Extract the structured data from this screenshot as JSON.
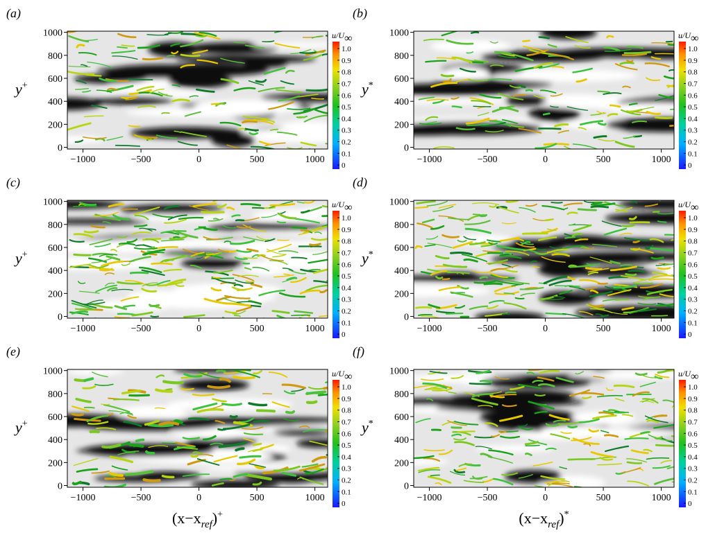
{
  "chart_data": [
    {
      "type": "field",
      "label": "(a)",
      "ylabel": {
        "main": "y",
        "sup": "+"
      },
      "xlim": [
        -1135,
        1110
      ],
      "ylim": [
        -15,
        1010
      ],
      "xticks": [
        {
          "value": -1000,
          "label": "−1000"
        },
        {
          "value": -500,
          "label": "−500"
        },
        0,
        500,
        1000
      ],
      "yticks": [
        0,
        200,
        400,
        600,
        800,
        1000
      ],
      "colorbar": {
        "title": {
          "main": "u/U",
          "sub": "∞"
        },
        "lim": [
          -0.035,
          1.06
        ],
        "ticks": [
          0,
          0.1,
          0.2,
          0.3,
          0.4,
          0.5,
          0.6,
          0.7,
          0.8,
          0.9,
          {
            "value": 1,
            "label": "1.0"
          }
        ]
      }
    },
    {
      "type": "field",
      "label": "(b)",
      "ylabel": {
        "main": "y",
        "sup": "*"
      },
      "xlim": [
        -1135,
        1110
      ],
      "ylim": [
        -15,
        1010
      ],
      "xticks": [
        {
          "value": -1000,
          "label": "−1000"
        },
        {
          "value": -500,
          "label": "−500"
        },
        0,
        500,
        1000
      ],
      "yticks": [
        0,
        200,
        400,
        600,
        800,
        1000
      ],
      "colorbar": {
        "title": {
          "main": "u/U",
          "sub": "∞"
        },
        "lim": [
          -0.035,
          1.06
        ],
        "ticks": [
          0,
          0.1,
          0.2,
          0.3,
          0.4,
          0.5,
          0.6,
          0.7,
          0.8,
          0.9,
          {
            "value": 1,
            "label": "1.0"
          }
        ]
      }
    },
    {
      "type": "field",
      "label": "(c)",
      "ylabel": {
        "main": "y",
        "sup": "+"
      },
      "xlim": [
        -1135,
        1110
      ],
      "ylim": [
        -15,
        1010
      ],
      "xticks": [
        {
          "value": -1000,
          "label": "−1000"
        },
        {
          "value": -500,
          "label": "−500"
        },
        0,
        500,
        1000
      ],
      "yticks": [
        0,
        200,
        400,
        600,
        800,
        1000
      ],
      "colorbar": {
        "title": {
          "main": "u/U",
          "sub": "∞"
        },
        "lim": [
          -0.035,
          1.06
        ],
        "ticks": [
          0,
          0.1,
          0.2,
          0.3,
          0.4,
          0.5,
          0.6,
          0.7,
          0.8,
          0.9,
          {
            "value": 1,
            "label": "1.0"
          }
        ]
      }
    },
    {
      "type": "field",
      "label": "(d)",
      "ylabel": {
        "main": "y",
        "sup": "*"
      },
      "xlim": [
        -1135,
        1110
      ],
      "ylim": [
        -15,
        1010
      ],
      "xticks": [
        {
          "value": -1000,
          "label": "−1000"
        },
        {
          "value": -500,
          "label": "−500"
        },
        0,
        500,
        1000
      ],
      "yticks": [
        0,
        200,
        400,
        600,
        800,
        1000
      ],
      "colorbar": {
        "title": {
          "main": "u/U",
          "sub": "∞"
        },
        "lim": [
          -0.035,
          1.06
        ],
        "ticks": [
          0,
          0.1,
          0.2,
          0.3,
          0.4,
          0.5,
          0.6,
          0.7,
          0.8,
          0.9,
          {
            "value": 1,
            "label": "1.0"
          }
        ]
      }
    },
    {
      "type": "field",
      "label": "(e)",
      "ylabel": {
        "main": "y",
        "sup": "+"
      },
      "xlabel": {
        "main": "(x−x",
        "sub": "ref",
        "end": ")",
        "sup": "+"
      },
      "xlim": [
        -1135,
        1110
      ],
      "ylim": [
        -15,
        1010
      ],
      "xticks": [
        {
          "value": -1000,
          "label": "−1000"
        },
        {
          "value": -500,
          "label": "−500"
        },
        0,
        500,
        1000
      ],
      "yticks": [
        0,
        200,
        400,
        600,
        800,
        1000
      ],
      "colorbar": {
        "title": {
          "main": "u/U",
          "sub": "∞"
        },
        "lim": [
          -0.035,
          1.06
        ],
        "ticks": [
          0,
          0.1,
          0.2,
          0.3,
          0.4,
          0.5,
          0.6,
          0.7,
          0.8,
          0.9,
          {
            "value": 1,
            "label": "1.0"
          }
        ]
      }
    },
    {
      "type": "field",
      "label": "(f)",
      "ylabel": {
        "main": "y",
        "sup": "*"
      },
      "xlabel": {
        "main": "(x−x",
        "sub": "ref",
        "end": ")",
        "sup": "*"
      },
      "xlim": [
        -1135,
        1110
      ],
      "ylim": [
        -15,
        1010
      ],
      "xticks": [
        {
          "value": -1000,
          "label": "−1000"
        },
        {
          "value": -500,
          "label": "−500"
        },
        0,
        500,
        1000
      ],
      "yticks": [
        0,
        200,
        400,
        600,
        800,
        1000
      ],
      "colorbar": {
        "title": {
          "main": "u/U",
          "sub": "∞"
        },
        "lim": [
          -0.035,
          1.06
        ],
        "ticks": [
          0,
          0.1,
          0.2,
          0.3,
          0.4,
          0.5,
          0.6,
          0.7,
          0.8,
          0.9,
          {
            "value": 1,
            "label": "1.0"
          }
        ]
      }
    }
  ]
}
